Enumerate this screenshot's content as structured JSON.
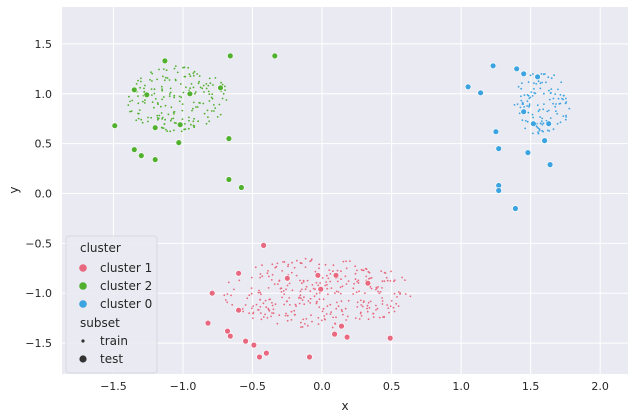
{
  "chart_data": {
    "type": "scatter",
    "xlabel": "x",
    "ylabel": "y",
    "xlim": [
      -1.87,
      2.2
    ],
    "ylim": [
      -1.81,
      1.87
    ],
    "xticks": [
      -1.5,
      -1.0,
      -0.5,
      0.0,
      0.5,
      1.0,
      1.5,
      2.0
    ],
    "yticks": [
      -1.5,
      -1.0,
      -0.5,
      0.0,
      0.5,
      1.0,
      1.5
    ],
    "xtick_labels": [
      "−1.5",
      "−1.0",
      "−0.5",
      "0.0",
      "0.5",
      "1.0",
      "1.5",
      "2.0"
    ],
    "ytick_labels": [
      "−1.5",
      "−1.0",
      "−0.5",
      "0.0",
      "0.5",
      "1.0",
      "1.5"
    ],
    "grid": true,
    "background": "#eaeaf2",
    "legend": {
      "placement": "lower-left",
      "hue_title": "cluster",
      "style_title": "subset",
      "hue_entries": [
        {
          "label": "cluster 1",
          "color": "#e8697f"
        },
        {
          "label": "cluster 2",
          "color": "#52b02f"
        },
        {
          "label": "cluster 0",
          "color": "#3ba3e0"
        }
      ],
      "style_entries": [
        {
          "label": "train",
          "marker": "small-dot"
        },
        {
          "label": "test",
          "marker": "large-dot"
        }
      ]
    },
    "series": [
      {
        "name": "cluster 1",
        "color": "#e8697f",
        "center": [
          -0.03,
          -1.0
        ],
        "spread": [
          0.68,
          0.35
        ],
        "train_count": 330,
        "test": [
          [
            -0.6,
            -0.8
          ],
          [
            -0.42,
            -0.52
          ],
          [
            -0.79,
            -1.0
          ],
          [
            -0.6,
            -1.17
          ],
          [
            -0.68,
            -1.38
          ],
          [
            -0.66,
            -1.43
          ],
          [
            -0.55,
            -1.48
          ],
          [
            -0.49,
            -1.52
          ],
          [
            -0.45,
            -1.64
          ],
          [
            -0.4,
            -1.6
          ],
          [
            -0.82,
            -1.3
          ],
          [
            -0.25,
            -0.85
          ],
          [
            -0.03,
            -0.82
          ],
          [
            0.1,
            -0.82
          ],
          [
            0.14,
            -1.33
          ],
          [
            0.18,
            -1.44
          ],
          [
            0.33,
            -0.9
          ],
          [
            -0.01,
            -0.96
          ],
          [
            0.09,
            -1.41
          ],
          [
            -0.09,
            -1.64
          ],
          [
            0.49,
            -1.45
          ]
        ]
      },
      {
        "name": "cluster 2",
        "color": "#52b02f",
        "center": [
          -1.05,
          0.95
        ],
        "spread": [
          0.38,
          0.33
        ],
        "train_count": 190,
        "test": [
          [
            -0.34,
            1.38
          ],
          [
            -0.66,
            1.38
          ],
          [
            -1.13,
            1.33
          ],
          [
            -0.95,
            1.0
          ],
          [
            -0.73,
            1.06
          ],
          [
            -1.35,
            1.04
          ],
          [
            -1.26,
            0.99
          ],
          [
            -1.49,
            0.68
          ],
          [
            -1.2,
            0.66
          ],
          [
            -1.02,
            0.69
          ],
          [
            -0.67,
            0.55
          ],
          [
            -1.03,
            0.51
          ],
          [
            -1.35,
            0.44
          ],
          [
            -1.3,
            0.38
          ],
          [
            -1.2,
            0.34
          ],
          [
            -0.67,
            0.14
          ],
          [
            -0.58,
            0.06
          ]
        ]
      },
      {
        "name": "cluster 0",
        "color": "#3ba3e0",
        "center": [
          1.58,
          0.9
        ],
        "spread": [
          0.2,
          0.32
        ],
        "train_count": 120,
        "test": [
          [
            1.05,
            1.07
          ],
          [
            1.14,
            1.01
          ],
          [
            1.23,
            1.28
          ],
          [
            1.4,
            1.25
          ],
          [
            1.45,
            1.2
          ],
          [
            1.55,
            1.17
          ],
          [
            1.45,
            0.82
          ],
          [
            1.52,
            0.7
          ],
          [
            1.63,
            0.7
          ],
          [
            1.25,
            0.62
          ],
          [
            1.27,
            0.45
          ],
          [
            1.48,
            0.41
          ],
          [
            1.6,
            0.53
          ],
          [
            1.64,
            0.29
          ],
          [
            1.27,
            0.08
          ],
          [
            1.27,
            0.03
          ],
          [
            1.39,
            -0.15
          ]
        ]
      }
    ]
  },
  "marker_sizes": {
    "train_radius": 0.9,
    "test_radius": 2.9
  },
  "seed": 7
}
